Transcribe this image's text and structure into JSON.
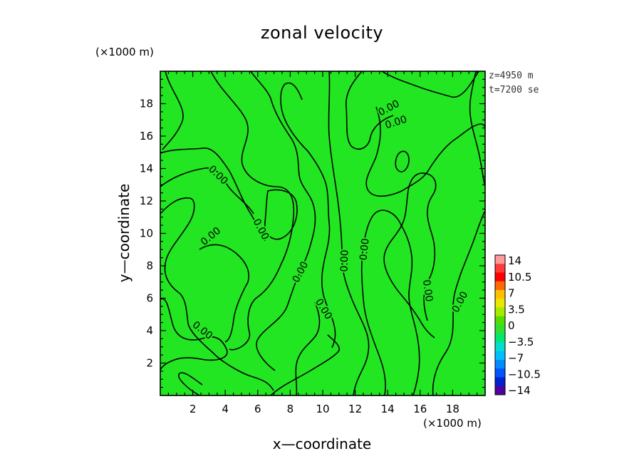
{
  "chart_data": {
    "type": "heatmap",
    "title": "zonal velocity",
    "xlabel": "x—coordinate",
    "ylabel": "y—coordinate",
    "x_unit": "(×1000 m)",
    "y_unit": "(×1000 m)",
    "xlim": [
      0,
      20
    ],
    "ylim": [
      0,
      20
    ],
    "x_ticks": [
      2,
      4,
      6,
      8,
      10,
      12,
      14,
      16,
      18
    ],
    "y_ticks": [
      2,
      4,
      6,
      8,
      10,
      12,
      14,
      16,
      18
    ],
    "annotations": [
      "z=4950 m",
      "t=7200 se"
    ],
    "field_value": 0,
    "contour_level": 0.0,
    "contour_label": "0.00",
    "fill_color": "#22e622",
    "colorbar": {
      "labels": [
        "14",
        "10.5",
        "7",
        "3.5",
        "0",
        "−3.5",
        "−7",
        "−10.5",
        "−14"
      ],
      "colors": [
        "#ff9a9a",
        "#ff3b3b",
        "#ff0000",
        "#ff6a00",
        "#ffc000",
        "#e8e800",
        "#a6ea00",
        "#55dd00",
        "#2fe02f",
        "#00e870",
        "#00dfcf",
        "#00bfff",
        "#008cff",
        "#0055ff",
        "#0022cc",
        "#5000a0"
      ]
    }
  }
}
